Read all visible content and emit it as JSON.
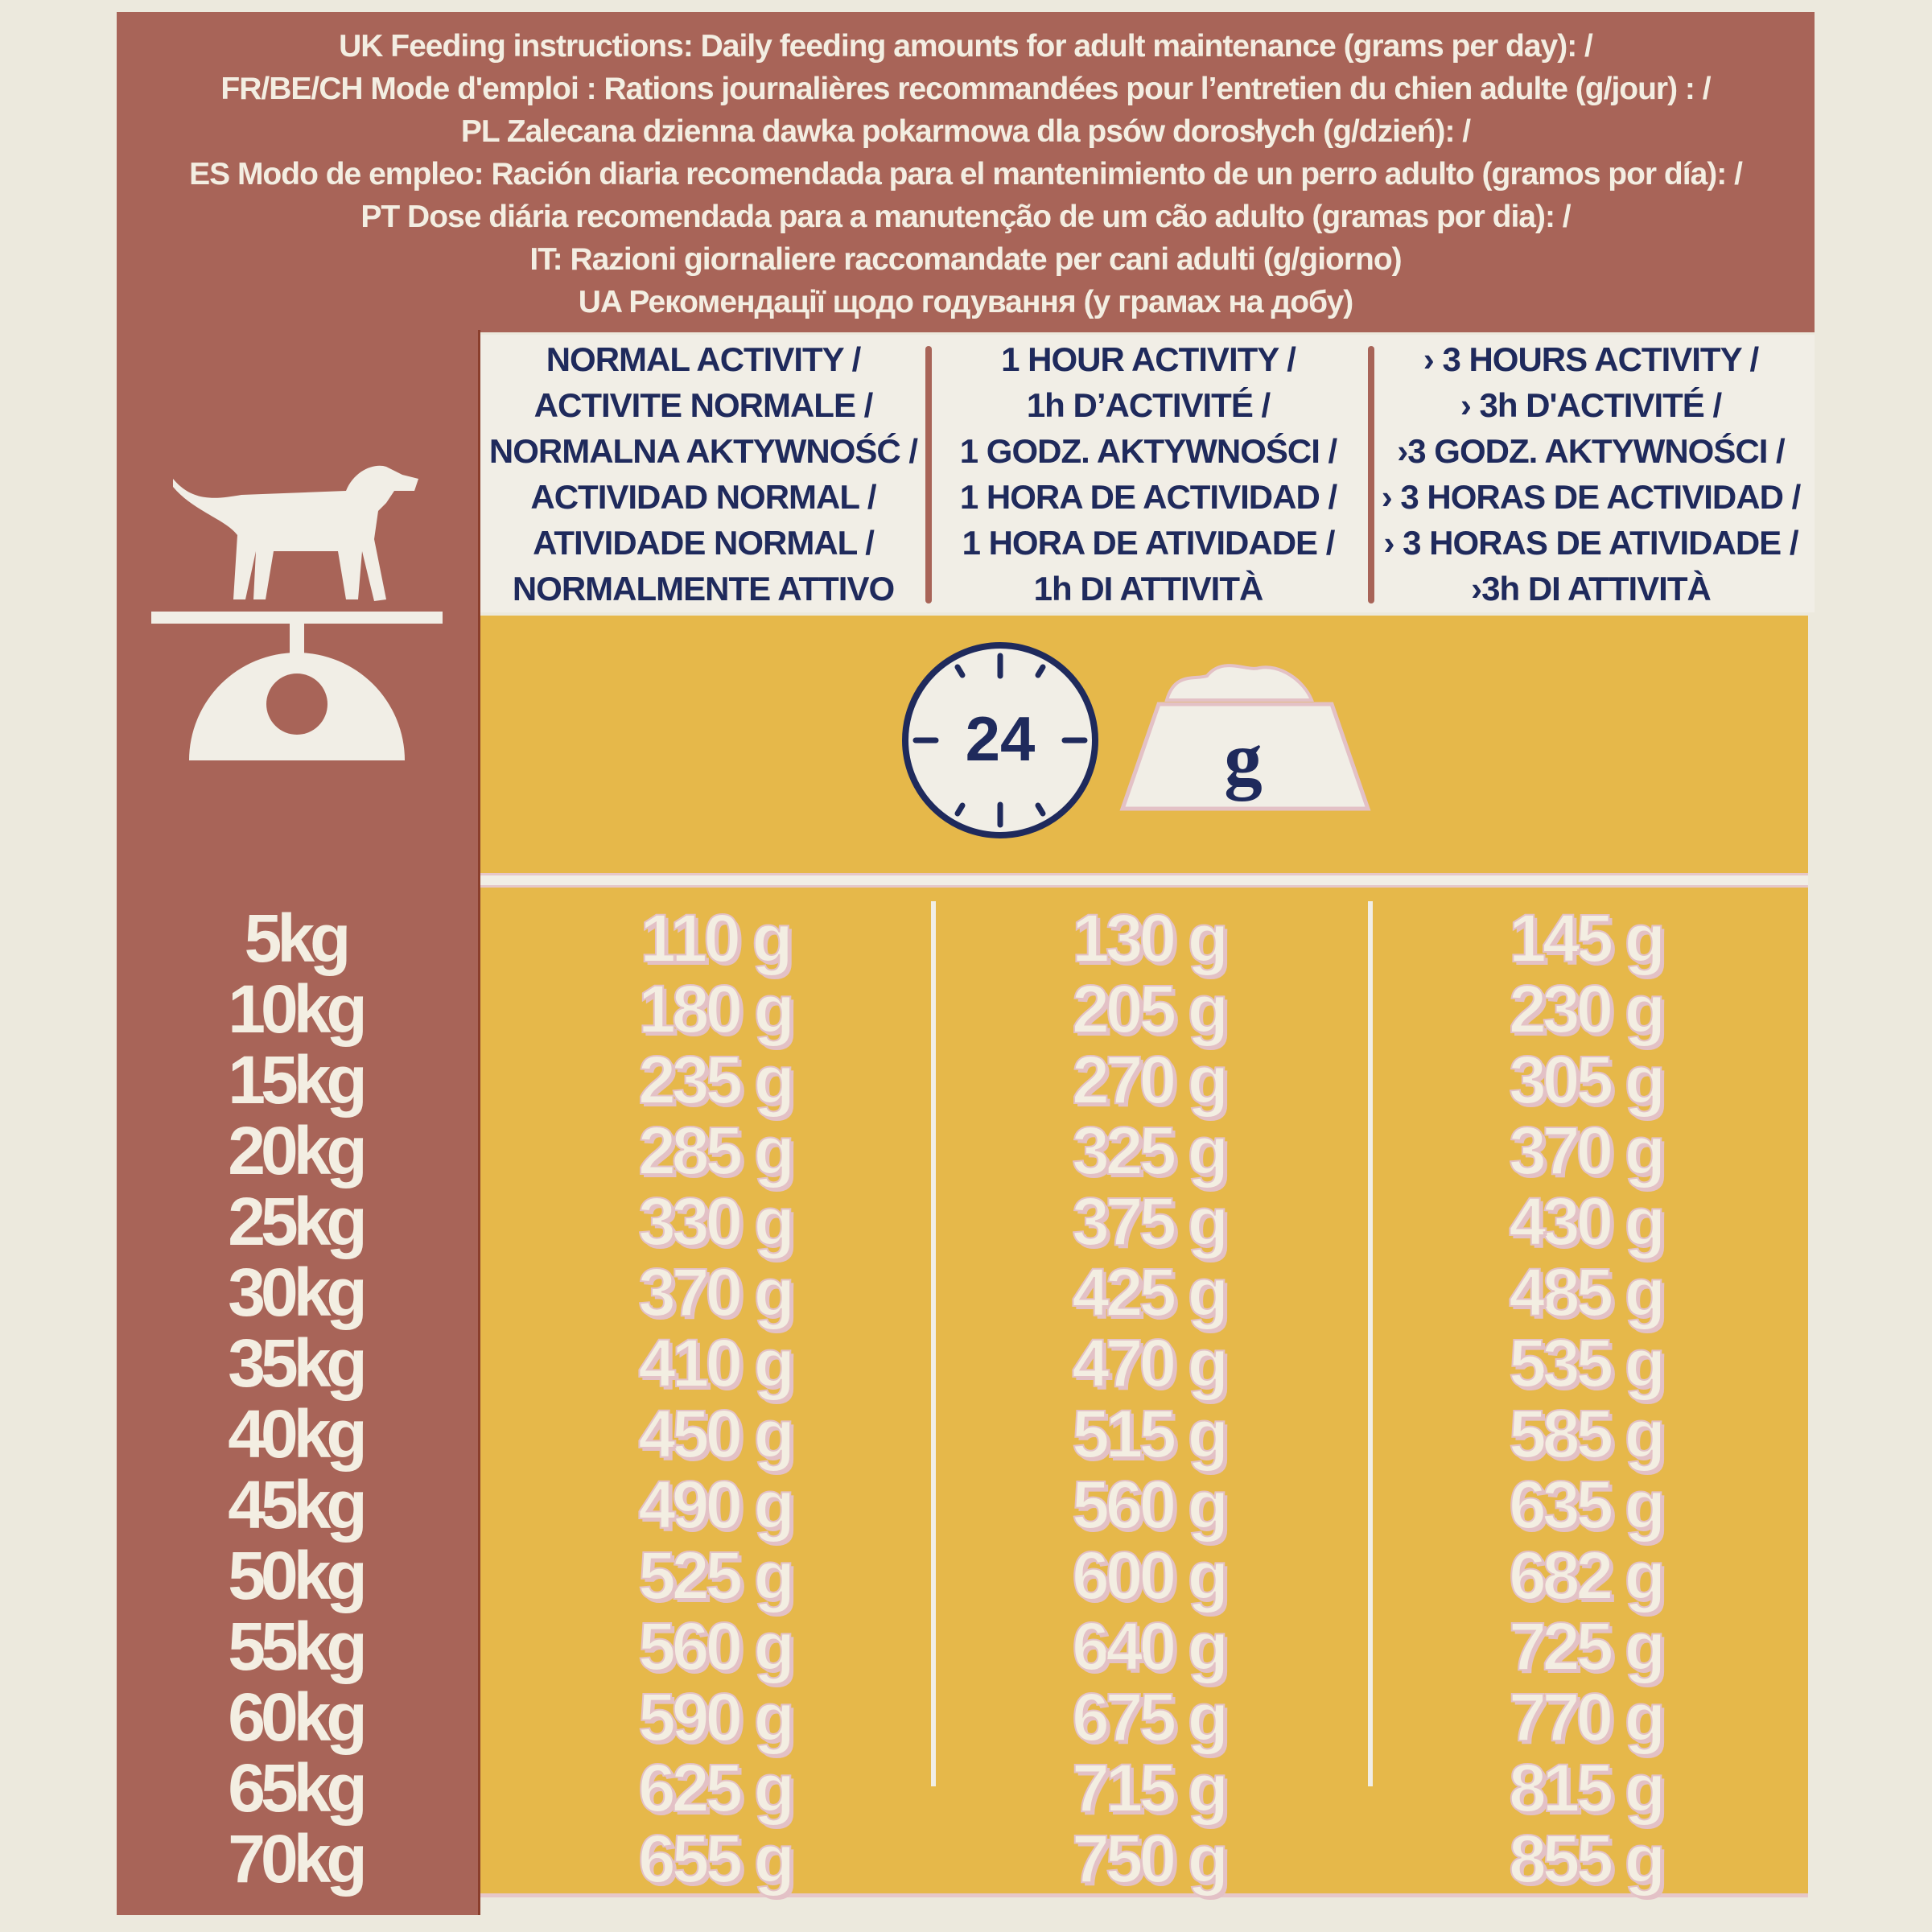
{
  "header_lines": [
    "UK Feeding instructions: Daily feeding amounts for adult maintenance (grams per day): /",
    "FR/BE/CH Mode d'emploi : Rations journalières recommandées pour l’entretien du chien adulte (g/jour) : /",
    "PL Zalecana dzienna dawka pokarmowa dla psów dorosłych (g/dzień): /",
    "ES Modo de empleo: Ración diaria recomendada para el mantenimiento de un perro adulto (gramos por día): /",
    "PT Dose diária recomendada para a manutenção de um cão adulto (gramas por dia): /",
    "IT: Razioni giornaliere raccomandate per cani adulti (g/giorno)",
    "UA Рекомендації щодо годування (у грамах на добу)"
  ],
  "columns": [
    {
      "lines": [
        "NORMAL ACTIVITY /",
        "ACTIVITE NORMALE /",
        "NORMALNA AKTYWNOŚĆ /",
        "ACTIVIDAD NORMAL /",
        "ATIVIDADE NORMAL /",
        "NORMALMENTE ATTIVO"
      ]
    },
    {
      "lines": [
        "1 HOUR ACTIVITY /",
        "1h D’ACTIVITÉ /",
        "1 GODZ. AKTYWNOŚCI /",
        "1 HORA DE ACTIVIDAD /",
        "1 HORA DE ATIVIDADE /",
        "1h DI ATTIVITÀ"
      ]
    },
    {
      "lines": [
        "› 3 HOURS ACTIVITY /",
        "› 3h D'ACTIVITÉ /",
        "›3 GODZ. AKTYWNOŚCI /",
        "› 3 HORAS DE ACTIVIDAD /",
        "› 3 HORAS DE ATIVIDADE /",
        "›3h DI ATTIVITÀ"
      ]
    }
  ],
  "icons": {
    "clock_label": "24",
    "bowl_label": "g",
    "dog": "dog-on-scale-icon"
  },
  "colors": {
    "brown": "#a86458",
    "yellow": "#e6b84a",
    "cream": "#f1eee6",
    "navy": "#1f2a5c"
  },
  "rows": [
    {
      "weight": "5kg",
      "normal": "110 g",
      "one_hour": "130 g",
      "three_hours": "145 g"
    },
    {
      "weight": "10kg",
      "normal": "180 g",
      "one_hour": "205 g",
      "three_hours": "230 g"
    },
    {
      "weight": "15kg",
      "normal": "235 g",
      "one_hour": "270 g",
      "three_hours": "305 g"
    },
    {
      "weight": "20kg",
      "normal": "285 g",
      "one_hour": "325 g",
      "three_hours": "370 g"
    },
    {
      "weight": "25kg",
      "normal": "330 g",
      "one_hour": "375 g",
      "three_hours": "430 g"
    },
    {
      "weight": "30kg",
      "normal": "370 g",
      "one_hour": "425 g",
      "three_hours": "485 g"
    },
    {
      "weight": "35kg",
      "normal": "410 g",
      "one_hour": "470 g",
      "three_hours": "535 g"
    },
    {
      "weight": "40kg",
      "normal": "450 g",
      "one_hour": "515 g",
      "three_hours": "585 g"
    },
    {
      "weight": "45kg",
      "normal": "490 g",
      "one_hour": "560 g",
      "three_hours": "635 g"
    },
    {
      "weight": "50kg",
      "normal": "525 g",
      "one_hour": "600 g",
      "three_hours": "682 g"
    },
    {
      "weight": "55kg",
      "normal": "560 g",
      "one_hour": "640 g",
      "three_hours": "725 g"
    },
    {
      "weight": "60kg",
      "normal": "590 g",
      "one_hour": "675 g",
      "three_hours": "770 g"
    },
    {
      "weight": "65kg",
      "normal": "625 g",
      "one_hour": "715 g",
      "three_hours": "815 g"
    },
    {
      "weight": "70kg",
      "normal": "655 g",
      "one_hour": "750 g",
      "three_hours": "855 g"
    }
  ]
}
